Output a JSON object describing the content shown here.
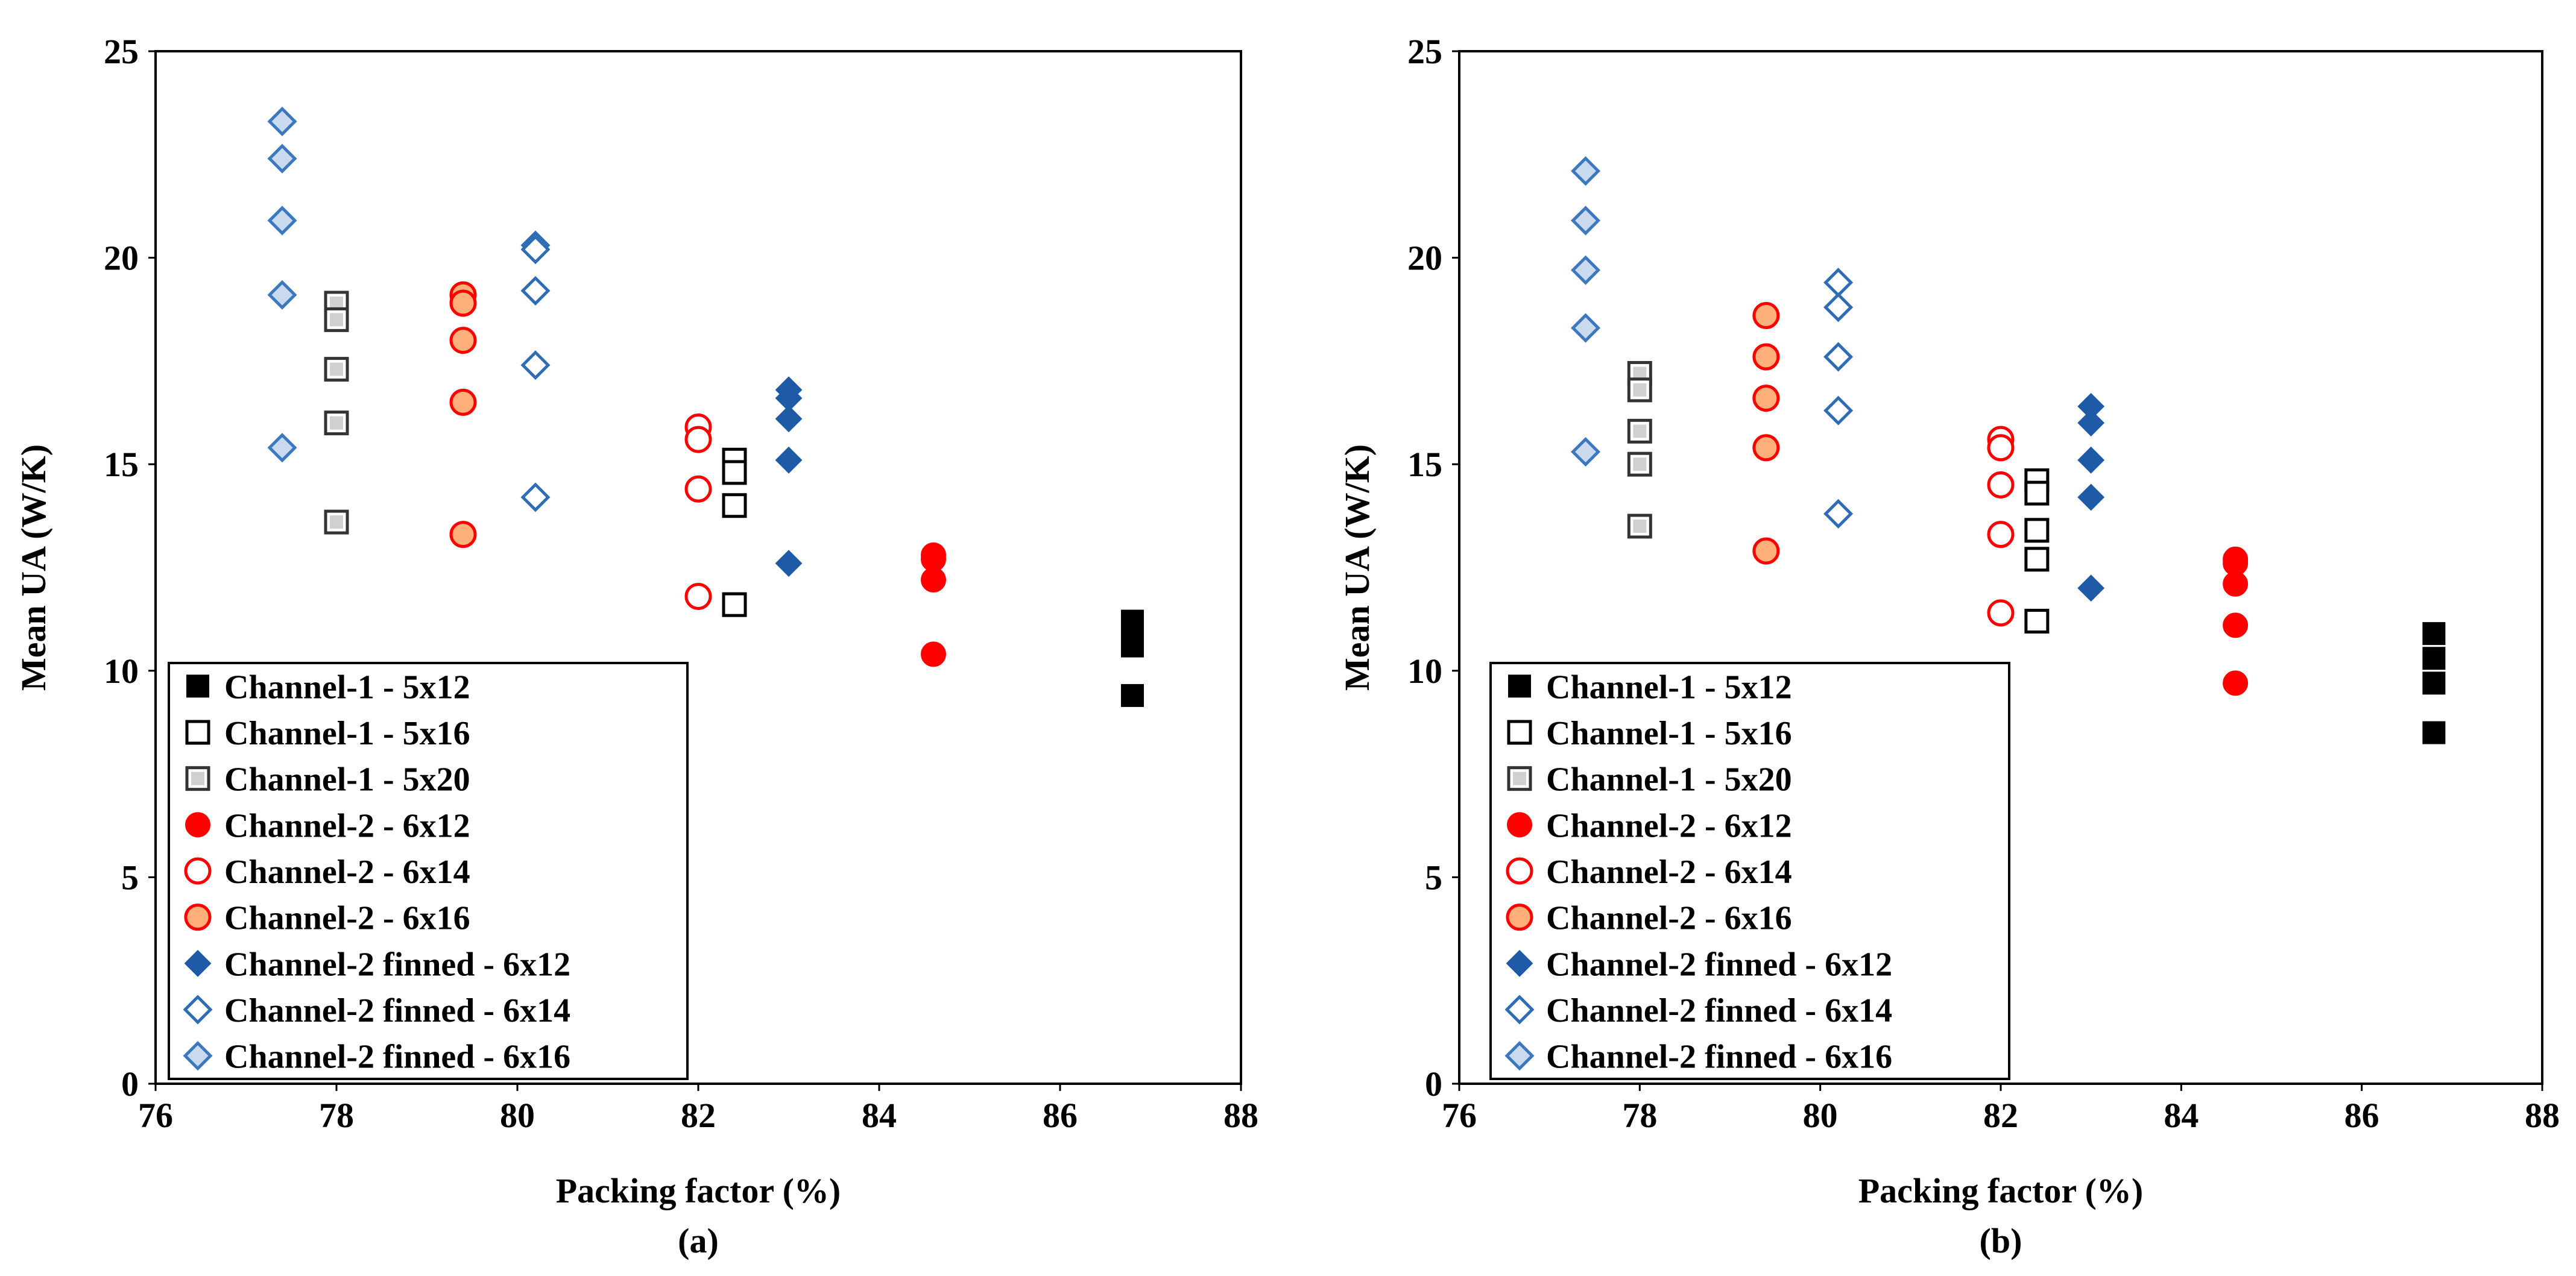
{
  "chart_data": [
    {
      "type": "scatter",
      "panel_label": "(a)",
      "xlabel": "Packing factor (%)",
      "ylabel": "Mean UA (W/K)",
      "xlim": [
        76,
        88
      ],
      "ylim": [
        0,
        25
      ],
      "xticks": [
        76,
        78,
        80,
        82,
        84,
        86,
        88
      ],
      "yticks": [
        0,
        5,
        10,
        15,
        20,
        25
      ],
      "grid": false,
      "legend_position": "bottom-left",
      "series": [
        {
          "name": "Channel-1 - 5x12",
          "marker": "square-filled",
          "color": "#000000",
          "points": [
            [
              86.8,
              11.2
            ],
            [
              86.8,
              10.9
            ],
            [
              86.8,
              10.6
            ],
            [
              86.8,
              9.4
            ]
          ]
        },
        {
          "name": "Channel-1 - 5x16",
          "marker": "square-open",
          "color": "#000000",
          "points": [
            [
              82.4,
              15.1
            ],
            [
              82.4,
              14.8
            ],
            [
              82.4,
              14.0
            ],
            [
              82.4,
              11.6
            ]
          ]
        },
        {
          "name": "Channel-1 - 5x20",
          "marker": "square-gray",
          "color": "#000000",
          "points": [
            [
              78.0,
              18.9
            ],
            [
              78.0,
              18.5
            ],
            [
              78.0,
              17.3
            ],
            [
              78.0,
              16.0
            ],
            [
              78.0,
              13.6
            ]
          ]
        },
        {
          "name": "Channel-2 - 6x12",
          "marker": "circle-filled",
          "color": "#ff0000",
          "points": [
            [
              84.6,
              12.8
            ],
            [
              84.6,
              12.7
            ],
            [
              84.6,
              12.2
            ],
            [
              84.6,
              10.4
            ]
          ]
        },
        {
          "name": "Channel-2 - 6x14",
          "marker": "circle-open",
          "color": "#ff0000",
          "points": [
            [
              82.0,
              15.9
            ],
            [
              82.0,
              15.6
            ],
            [
              82.0,
              14.4
            ],
            [
              82.0,
              11.8
            ]
          ]
        },
        {
          "name": "Channel-2 - 6x16",
          "marker": "circle-orange",
          "color": "#ff0000",
          "points": [
            [
              79.4,
              19.1
            ],
            [
              79.4,
              18.9
            ],
            [
              79.4,
              18.0
            ],
            [
              79.4,
              16.5
            ],
            [
              79.4,
              13.3
            ]
          ]
        },
        {
          "name": "Channel-2 finned - 6x12",
          "marker": "diamond-filled",
          "color": "#1f5aa6",
          "points": [
            [
              83.0,
              16.8
            ],
            [
              83.0,
              16.6
            ],
            [
              83.0,
              16.1
            ],
            [
              83.0,
              15.1
            ],
            [
              83.0,
              12.6
            ]
          ]
        },
        {
          "name": "Channel-2 finned - 6x14",
          "marker": "diamond-open",
          "color": "#2e6db5",
          "points": [
            [
              80.2,
              20.3
            ],
            [
              80.2,
              20.2
            ],
            [
              80.2,
              19.2
            ],
            [
              80.2,
              17.4
            ],
            [
              80.2,
              14.2
            ]
          ]
        },
        {
          "name": "Channel-2 finned - 6x16",
          "marker": "diamond-light",
          "color": "#3c78c0",
          "points": [
            [
              77.4,
              23.3
            ],
            [
              77.4,
              22.4
            ],
            [
              77.4,
              20.9
            ],
            [
              77.4,
              19.1
            ],
            [
              77.4,
              15.4
            ]
          ]
        }
      ]
    },
    {
      "type": "scatter",
      "panel_label": "(b)",
      "xlabel": "Packing factor (%)",
      "ylabel": "Mean UA (W/K)",
      "xlim": [
        76,
        88
      ],
      "ylim": [
        0,
        25
      ],
      "xticks": [
        76,
        78,
        80,
        82,
        84,
        86,
        88
      ],
      "yticks": [
        0,
        5,
        10,
        15,
        20,
        25
      ],
      "grid": false,
      "legend_position": "bottom-left",
      "series": [
        {
          "name": "Channel-1 - 5x12",
          "marker": "square-filled",
          "color": "#000000",
          "points": [
            [
              86.8,
              10.9
            ],
            [
              86.8,
              10.3
            ],
            [
              86.8,
              9.7
            ],
            [
              86.8,
              8.5
            ]
          ]
        },
        {
          "name": "Channel-1 - 5x16",
          "marker": "square-open",
          "color": "#000000",
          "points": [
            [
              82.4,
              14.6
            ],
            [
              82.4,
              14.3
            ],
            [
              82.4,
              13.4
            ],
            [
              82.4,
              12.7
            ],
            [
              82.4,
              11.2
            ]
          ]
        },
        {
          "name": "Channel-1 - 5x20",
          "marker": "square-gray",
          "color": "#000000",
          "points": [
            [
              78.0,
              17.2
            ],
            [
              78.0,
              16.8
            ],
            [
              78.0,
              15.8
            ],
            [
              78.0,
              15.0
            ],
            [
              78.0,
              13.5
            ]
          ]
        },
        {
          "name": "Channel-2 - 6x12",
          "marker": "circle-filled",
          "color": "#ff0000",
          "points": [
            [
              84.6,
              12.7
            ],
            [
              84.6,
              12.6
            ],
            [
              84.6,
              12.1
            ],
            [
              84.6,
              11.1
            ],
            [
              84.6,
              9.7
            ]
          ]
        },
        {
          "name": "Channel-2 - 6x14",
          "marker": "circle-open",
          "color": "#ff0000",
          "points": [
            [
              82.0,
              15.6
            ],
            [
              82.0,
              15.4
            ],
            [
              82.0,
              14.5
            ],
            [
              82.0,
              13.3
            ],
            [
              82.0,
              11.4
            ]
          ]
        },
        {
          "name": "Channel-2 - 6x16",
          "marker": "circle-orange",
          "color": "#ff0000",
          "points": [
            [
              79.4,
              18.6
            ],
            [
              79.4,
              17.6
            ],
            [
              79.4,
              16.6
            ],
            [
              79.4,
              15.4
            ],
            [
              79.4,
              12.9
            ]
          ]
        },
        {
          "name": "Channel-2 finned - 6x12",
          "marker": "diamond-filled",
          "color": "#1f5aa6",
          "points": [
            [
              83.0,
              16.4
            ],
            [
              83.0,
              16.0
            ],
            [
              83.0,
              15.1
            ],
            [
              83.0,
              14.2
            ],
            [
              83.0,
              12.0
            ]
          ]
        },
        {
          "name": "Channel-2 finned - 6x14",
          "marker": "diamond-open",
          "color": "#2e6db5",
          "points": [
            [
              80.2,
              19.4
            ],
            [
              80.2,
              18.8
            ],
            [
              80.2,
              17.6
            ],
            [
              80.2,
              16.3
            ],
            [
              80.2,
              13.8
            ]
          ]
        },
        {
          "name": "Channel-2 finned - 6x16",
          "marker": "diamond-light",
          "color": "#3c78c0",
          "points": [
            [
              77.4,
              22.1
            ],
            [
              77.4,
              20.9
            ],
            [
              77.4,
              19.7
            ],
            [
              77.4,
              18.3
            ],
            [
              77.4,
              15.3
            ]
          ]
        }
      ]
    }
  ]
}
